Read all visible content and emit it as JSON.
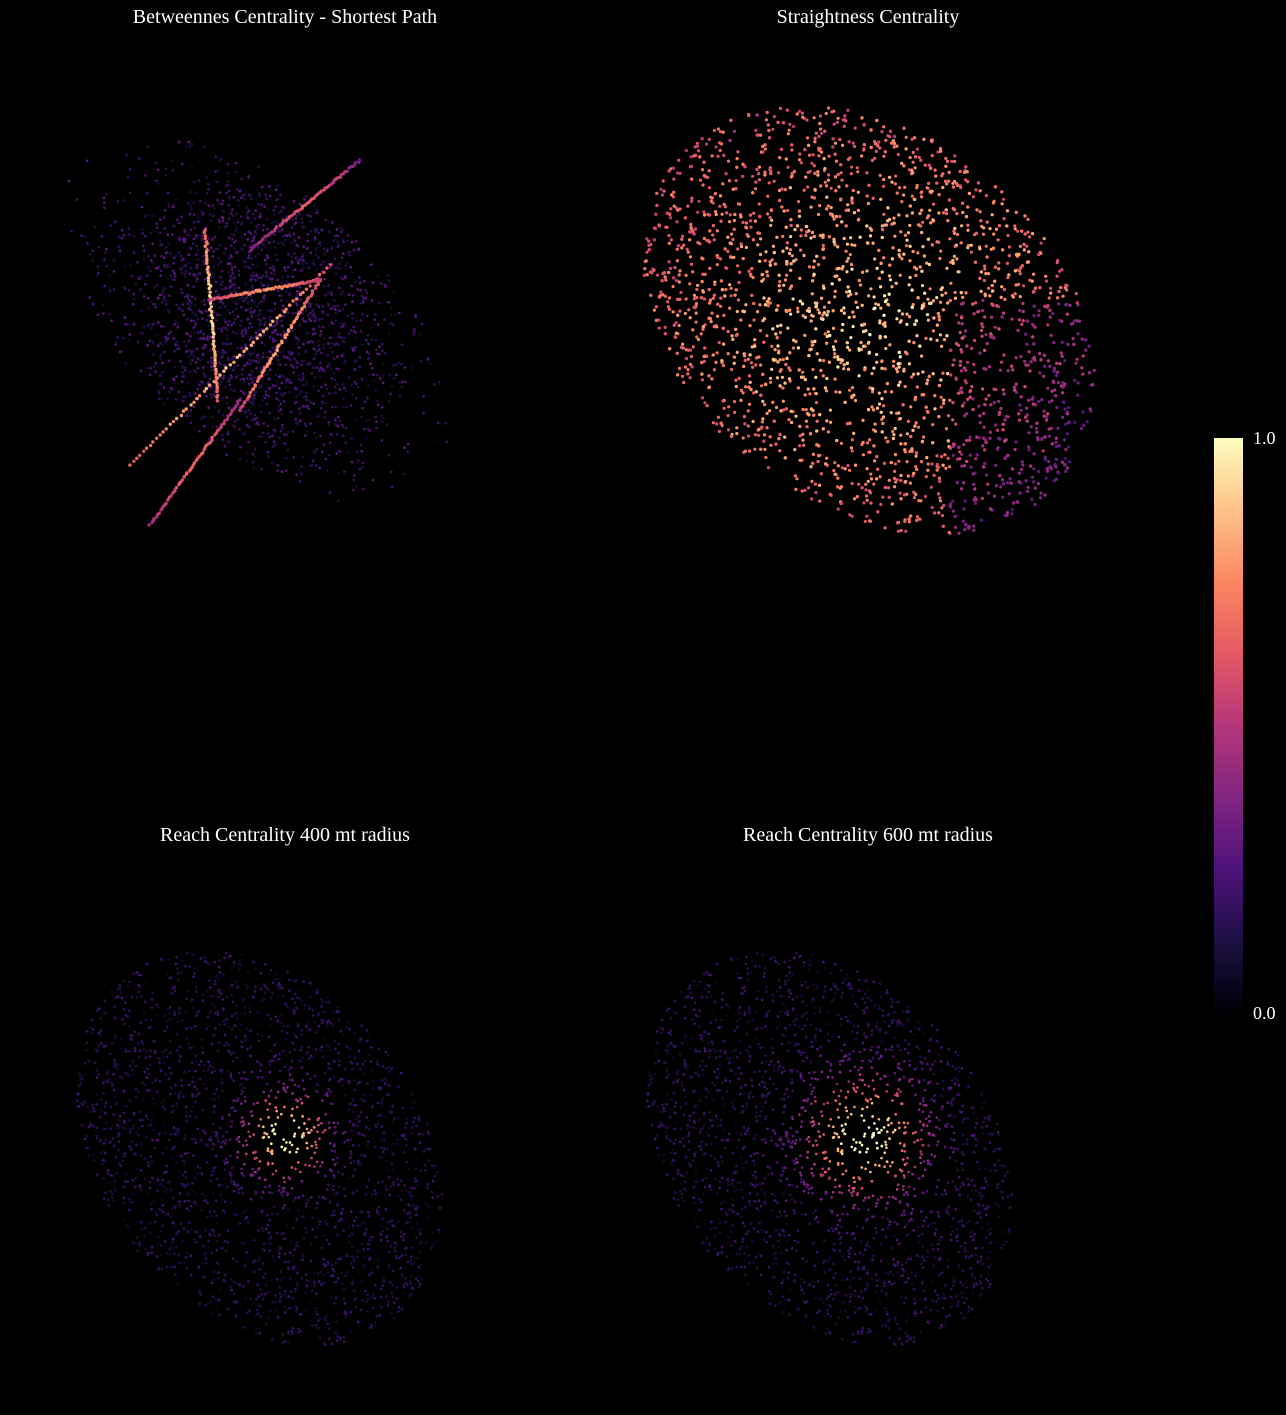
{
  "panels": [
    {
      "id": "betweenness",
      "title": "Betweennes Centrality - Shortest Path"
    },
    {
      "id": "straightness",
      "title": "Straightness Centrality"
    },
    {
      "id": "reach400",
      "title": "Reach Centrality 400 mt radius"
    },
    {
      "id": "reach600",
      "title": "Reach Centrality 600 mt radius"
    }
  ],
  "colorbar": {
    "colormap": "magma",
    "max_label": "1.0",
    "min_label": "0.0",
    "stops": [
      "#000004",
      "#1c1044",
      "#4f127b",
      "#812581",
      "#b5367a",
      "#e55964",
      "#fb8761",
      "#fec287",
      "#fcfdbf"
    ]
  },
  "colors": {
    "background": "#000000",
    "text": "#ffffff"
  }
}
